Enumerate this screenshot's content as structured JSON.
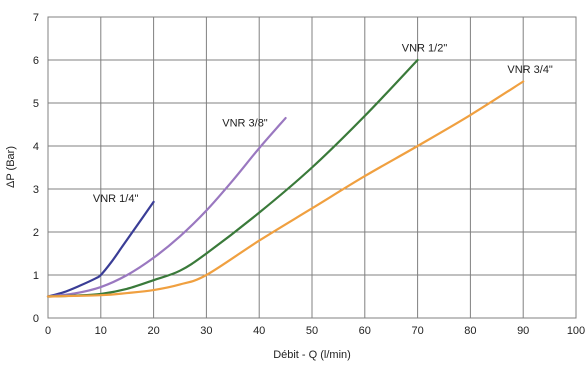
{
  "chart_data": {
    "type": "line",
    "xlabel": "Débit - Q (l/min)",
    "ylabel": "ΔP (Bar)",
    "xlim": [
      0,
      100
    ],
    "ylim": [
      0,
      7
    ],
    "x_ticks": [
      0,
      10,
      20,
      30,
      40,
      50,
      60,
      70,
      80,
      90,
      100
    ],
    "y_ticks": [
      0,
      1,
      2,
      3,
      4,
      5,
      6,
      7
    ],
    "grid": true,
    "legend": "none",
    "series": [
      {
        "name": "VNR 1/4\"",
        "color": "#3a3d96",
        "x": [
          0,
          3,
          6,
          9,
          10,
          12,
          14,
          16,
          18,
          20
        ],
        "y": [
          0.5,
          0.6,
          0.75,
          0.92,
          1.0,
          1.3,
          1.65,
          2.0,
          2.35,
          2.7
        ]
      },
      {
        "name": "VNR 3/8\"",
        "color": "#9a78c0",
        "x": [
          0,
          5,
          10,
          15,
          20,
          25,
          30,
          35,
          40,
          45
        ],
        "y": [
          0.5,
          0.57,
          0.72,
          1.0,
          1.4,
          1.9,
          2.5,
          3.2,
          3.95,
          4.65
        ]
      },
      {
        "name": "VNR 1/2\"",
        "color": "#3a7a3a",
        "x": [
          0,
          5,
          10,
          15,
          20,
          25,
          30,
          40,
          50,
          60,
          70
        ],
        "y": [
          0.5,
          0.52,
          0.56,
          0.68,
          0.88,
          1.1,
          1.5,
          2.45,
          3.5,
          4.7,
          6.0
        ]
      },
      {
        "name": "VNR 3/4\"",
        "color": "#f0a040",
        "x": [
          0,
          10,
          15,
          20,
          25,
          30,
          40,
          50,
          60,
          70,
          80,
          90
        ],
        "y": [
          0.5,
          0.53,
          0.58,
          0.65,
          0.78,
          1.0,
          1.8,
          2.55,
          3.3,
          4.0,
          4.72,
          5.5
        ]
      }
    ],
    "annotations": [
      {
        "text": "VNR 1/4\"",
        "x": 8.5,
        "y": 2.7
      },
      {
        "text": "VNR 3/8\"",
        "x": 33,
        "y": 4.45
      },
      {
        "text": "VNR 1/2\"",
        "x": 67,
        "y": 6.2
      },
      {
        "text": "VNR 3/4\"",
        "x": 87,
        "y": 5.7
      }
    ]
  }
}
